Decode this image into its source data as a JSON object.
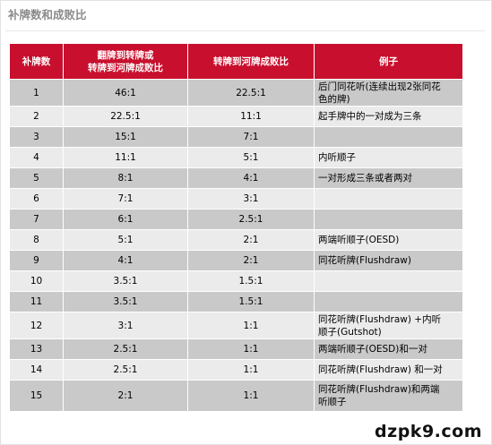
{
  "title": "补牌数和成败比",
  "headers": [
    "补牌数",
    "翻牌到转牌或\n转牌到河牌成败比",
    "转牌到河牌成败比",
    "例子"
  ],
  "rows": [
    {
      "outs": "1",
      "flop_or_turn": "46:1",
      "turn_to_river": "22.5:1",
      "example": "后门同花听(连续出现2张同花\n色的牌)"
    },
    {
      "outs": "2",
      "flop_or_turn": "22.5:1",
      "turn_to_river": "11:1",
      "example": "起手牌中的一对成为三条"
    },
    {
      "outs": "3",
      "flop_or_turn": "15:1",
      "turn_to_river": "7:1",
      "example": ""
    },
    {
      "outs": "4",
      "flop_or_turn": "11:1",
      "turn_to_river": "5:1",
      "example": "内听顺子"
    },
    {
      "outs": "5",
      "flop_or_turn": "8:1",
      "turn_to_river": "4:1",
      "example": "一对形成三条或者两对"
    },
    {
      "outs": "6",
      "flop_or_turn": "7:1",
      "turn_to_river": "3:1",
      "example": ""
    },
    {
      "outs": "7",
      "flop_or_turn": "6:1",
      "turn_to_river": "2.5:1",
      "example": ""
    },
    {
      "outs": "8",
      "flop_or_turn": "5:1",
      "turn_to_river": "2:1",
      "example": "两端听顺子(OESD)"
    },
    {
      "outs": "9",
      "flop_or_turn": "4:1",
      "turn_to_river": "2:1",
      "example": "同花听牌(Flushdraw)"
    },
    {
      "outs": "10",
      "flop_or_turn": "3.5:1",
      "turn_to_river": "1.5:1",
      "example": ""
    },
    {
      "outs": "11",
      "flop_or_turn": "3.5:1",
      "turn_to_river": "1.5:1",
      "example": ""
    },
    {
      "outs": "12",
      "flop_or_turn": "3:1",
      "turn_to_river": "1:1",
      "example": "同花听牌(Flushdraw) +内听\n顺子(Gutshot)"
    },
    {
      "outs": "13",
      "flop_or_turn": "2.5:1",
      "turn_to_river": "1:1",
      "example": "两端听顺子(OESD)和一对"
    },
    {
      "outs": "14",
      "flop_or_turn": "2.5:1",
      "turn_to_river": "1:1",
      "example": "同花听牌(Flushdraw) 和一对"
    },
    {
      "outs": "15",
      "flop_or_turn": "2:1",
      "turn_to_river": "1:1",
      "example": "同花听牌(Flushdraw)和两端\n听顺子"
    }
  ],
  "watermark": "dzpk9.com",
  "colors": {
    "header_bg": "#c8102e",
    "row_odd": "#c9c9c9",
    "row_even": "#ebebeb"
  }
}
